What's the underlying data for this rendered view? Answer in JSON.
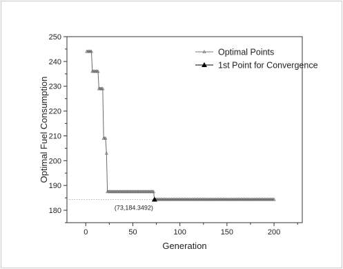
{
  "chart_data": {
    "type": "line",
    "title": "",
    "xlabel": "Generation",
    "ylabel": "Optimal Fuel Consumption",
    "xlim": [
      -20,
      230
    ],
    "ylim": [
      175,
      250
    ],
    "xticks": [
      0,
      50,
      100,
      150,
      200
    ],
    "yticks": [
      180,
      190,
      200,
      210,
      220,
      230,
      240,
      250
    ],
    "grid": false,
    "legend_position": "top-right",
    "series": [
      {
        "name": "Optimal Points",
        "marker": "small-open-triangle",
        "color": "#808080",
        "x": [
          1,
          2,
          3,
          4,
          5,
          6,
          7,
          8,
          9,
          10,
          11,
          12,
          13,
          14,
          15,
          16,
          17,
          18,
          19,
          20,
          21,
          22,
          23,
          24,
          25,
          26,
          27,
          28,
          29,
          30,
          31,
          32,
          33,
          34,
          35,
          36,
          37,
          38,
          39,
          40,
          41,
          42,
          43,
          44,
          45,
          46,
          47,
          48,
          49,
          50,
          51,
          52,
          53,
          54,
          55,
          56,
          57,
          58,
          59,
          60,
          61,
          62,
          63,
          64,
          65,
          66,
          67,
          68,
          69,
          70,
          71,
          72,
          73,
          74,
          75,
          76,
          77,
          78,
          79,
          80,
          81,
          82,
          83,
          84,
          85,
          86,
          87,
          88,
          89,
          90,
          91,
          92,
          93,
          94,
          95,
          96,
          97,
          98,
          99,
          100,
          101,
          102,
          103,
          104,
          105,
          106,
          107,
          108,
          109,
          110,
          111,
          112,
          113,
          114,
          115,
          116,
          117,
          118,
          119,
          120,
          121,
          122,
          123,
          124,
          125,
          126,
          127,
          128,
          129,
          130,
          131,
          132,
          133,
          134,
          135,
          136,
          137,
          138,
          139,
          140,
          141,
          142,
          143,
          144,
          145,
          146,
          147,
          148,
          149,
          150,
          151,
          152,
          153,
          154,
          155,
          156,
          157,
          158,
          159,
          160,
          161,
          162,
          163,
          164,
          164,
          165,
          166,
          167,
          168,
          169,
          170,
          171,
          172,
          173,
          174,
          175,
          176,
          177,
          178,
          179,
          180,
          181,
          182,
          183,
          184,
          185,
          186,
          187,
          188,
          189,
          190,
          191,
          192,
          193,
          194,
          195,
          196,
          197,
          198,
          199,
          200
        ],
        "y_steps": [
          {
            "from": 1,
            "to": 6,
            "value": 244
          },
          {
            "from": 7,
            "to": 13,
            "value": 236
          },
          {
            "from": 14,
            "to": 18,
            "value": 229
          },
          {
            "from": 19,
            "to": 21,
            "value": 209
          },
          {
            "from": 22,
            "to": 22,
            "value": 203
          },
          {
            "from": 23,
            "to": 72,
            "value": 187.5
          },
          {
            "from": 73,
            "to": 200,
            "value": 184.35
          }
        ]
      },
      {
        "name": "1st Point for Convergence",
        "marker": "filled-triangle",
        "color": "#000000",
        "x": [
          73
        ],
        "y": [
          184.3492
        ]
      }
    ],
    "reference_line": {
      "y": 184.3492,
      "style": "dotted"
    },
    "annotations": [
      {
        "text": "(73,184.3492)",
        "x": 73,
        "y": 184.3492
      }
    ]
  }
}
